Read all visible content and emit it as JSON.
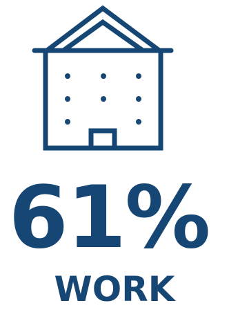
{
  "colors": {
    "primary": "#164774",
    "background": "#ffffff"
  },
  "icon": "building-icon",
  "stat": {
    "value": "61%",
    "label": "WORK"
  }
}
